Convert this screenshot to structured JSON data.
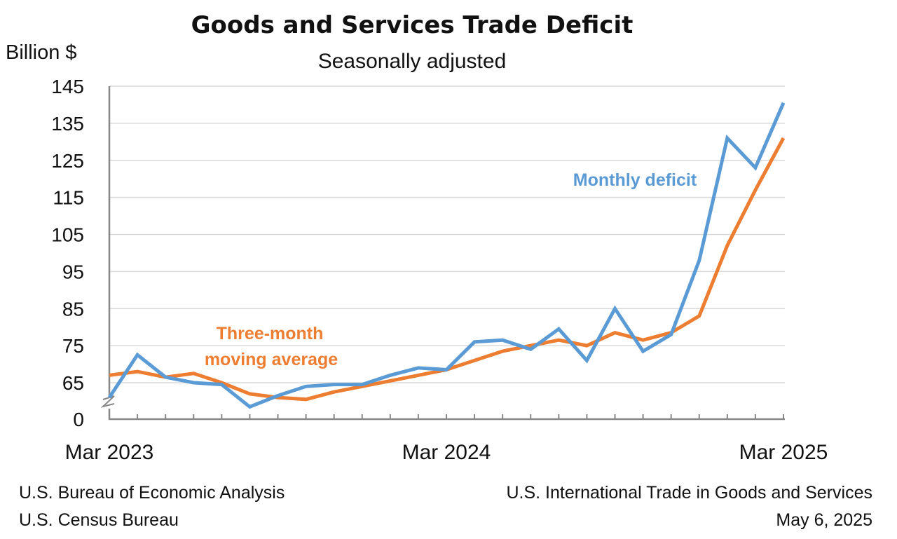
{
  "chart_data": {
    "type": "line",
    "title": "Goods and Services Trade Deficit",
    "subtitle": "Seasonally adjusted",
    "ylabel": "Billion $",
    "xlabel": "",
    "ylim": [
      0,
      145
    ],
    "yticks": [
      "0",
      "65",
      "75",
      "85",
      "95",
      "105",
      "115",
      "125",
      "135",
      "145"
    ],
    "axis_break": "between 0 and 65",
    "categories": [
      "Mar 2023",
      "Apr 2023",
      "May 2023",
      "Jun 2023",
      "Jul 2023",
      "Aug 2023",
      "Sep 2023",
      "Oct 2023",
      "Nov 2023",
      "Dec 2023",
      "Jan 2024",
      "Feb 2024",
      "Mar 2024",
      "Apr 2024",
      "May 2024",
      "Jun 2024",
      "Jul 2024",
      "Aug 2024",
      "Sep 2024",
      "Oct 2024",
      "Nov 2024",
      "Dec 2024",
      "Jan 2025",
      "Feb 2025",
      "Mar 2025"
    ],
    "xtick_labels": [
      {
        "index": 0,
        "label": "Mar 2023"
      },
      {
        "index": 12,
        "label": "Mar 2024"
      },
      {
        "index": 24,
        "label": "Mar 2025"
      }
    ],
    "series": [
      {
        "name": "Monthly deficit",
        "color": "#5b9bd5",
        "values": [
          61.0,
          72.5,
          66.5,
          65.0,
          64.5,
          58.5,
          61.5,
          64.0,
          64.5,
          64.5,
          67.0,
          69.0,
          68.5,
          76.0,
          76.5,
          74.0,
          79.5,
          71.0,
          85.0,
          73.5,
          78.0,
          98.0,
          131.0,
          123.0,
          140.5
        ]
      },
      {
        "name": "Three-month moving average",
        "color": "#ed7d31",
        "values": [
          67.0,
          68.0,
          66.5,
          67.5,
          65.0,
          62.0,
          61.0,
          60.5,
          62.5,
          64.0,
          65.5,
          67.0,
          68.5,
          71.0,
          73.5,
          75.0,
          76.5,
          75.0,
          78.5,
          76.5,
          78.5,
          83.0,
          102.0,
          117.0,
          131.0
        ]
      }
    ],
    "annotations": {
      "monthly": "Monthly deficit",
      "ma_line1": "Three-month",
      "ma_line2": "moving average"
    }
  },
  "footer": {
    "left_line1": "U.S. Bureau of Economic Analysis",
    "left_line2": "U.S. Census Bureau",
    "right_line1": "U.S. International Trade in Goods and Services",
    "right_line2": "May 6, 2025"
  }
}
